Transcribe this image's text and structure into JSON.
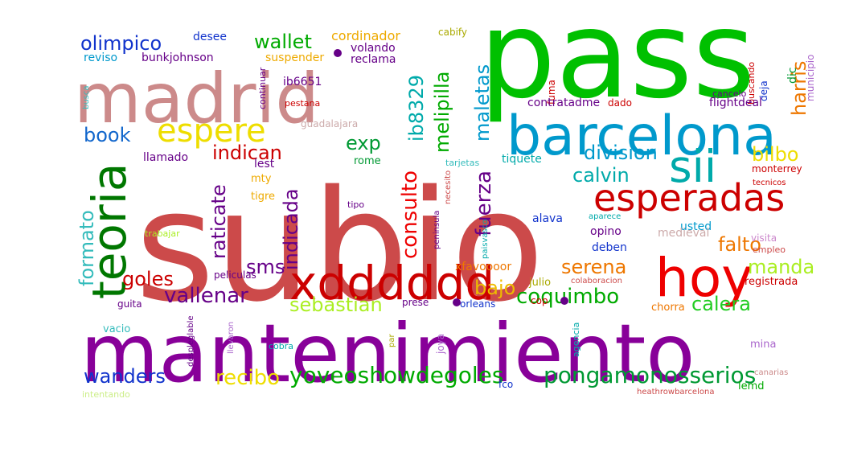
{
  "wordcloud": {
    "words": [
      {
        "text": "subio",
        "color": "#cc4a4a"
      },
      {
        "text": "pass",
        "color": "#00c000"
      },
      {
        "text": "mantenimiento",
        "color": "#880099"
      },
      {
        "text": "madrid",
        "color": "#cc8a8a"
      },
      {
        "text": "barcelona",
        "color": "#0099cc"
      },
      {
        "text": "hoy",
        "color": "#ee0000"
      },
      {
        "text": "xdddddd",
        "color": "#cc0000"
      },
      {
        "text": "teoria",
        "color": "#007700"
      },
      {
        "text": "espere",
        "color": "#eedd00"
      },
      {
        "text": "sii",
        "color": "#00aaaa"
      },
      {
        "text": "esperadas",
        "color": "#cc0000"
      },
      {
        "text": "yoveoshowdegoles",
        "color": "#00aa00"
      },
      {
        "text": "pongamonosserios",
        "color": "#009933"
      },
      {
        "text": "wanders",
        "color": "#1133cc"
      },
      {
        "text": "recibo",
        "color": "#eedd00"
      },
      {
        "text": "sebastian",
        "color": "#aaee22"
      },
      {
        "text": "vallenar",
        "color": "#660088"
      },
      {
        "text": "coquimbo",
        "color": "#00aa00"
      },
      {
        "text": "calera",
        "color": "#22cc22"
      },
      {
        "text": "goles",
        "color": "#cc0000"
      },
      {
        "text": "sms",
        "color": "#660088"
      },
      {
        "text": "formato",
        "color": "#33bbbb"
      },
      {
        "text": "raticate",
        "color": "#660088"
      },
      {
        "text": "indicada",
        "color": "#660088"
      },
      {
        "text": "consulto",
        "color": "#ee0000"
      },
      {
        "text": "fuerza",
        "color": "#660088"
      },
      {
        "text": "bajo",
        "color": "#eebb00"
      },
      {
        "text": "serena",
        "color": "#ee7700"
      },
      {
        "text": "manda",
        "color": "#aaee22"
      },
      {
        "text": "falto",
        "color": "#ee7700"
      },
      {
        "text": "calvin",
        "color": "#00aaaa"
      },
      {
        "text": "division",
        "color": "#0099cc"
      },
      {
        "text": "bilbo",
        "color": "#eedd00"
      },
      {
        "text": "indican",
        "color": "#cc0000"
      },
      {
        "text": "exp",
        "color": "#009933"
      },
      {
        "text": "book",
        "color": "#1166cc"
      },
      {
        "text": "olimpico",
        "color": "#1133cc"
      },
      {
        "text": "wallet",
        "color": "#00aa00"
      },
      {
        "text": "maletas",
        "color": "#0099cc"
      },
      {
        "text": "melipilla",
        "color": "#00aa00"
      },
      {
        "text": "ib8329",
        "color": "#00aaaa"
      },
      {
        "text": "harris",
        "color": "#ee7700"
      },
      {
        "text": "cordinador",
        "color": "#eeaa00"
      },
      {
        "text": "desee",
        "color": "#1133cc"
      },
      {
        "text": "reviso",
        "color": "#0099cc"
      },
      {
        "text": "bunkjohnson",
        "color": "#660088"
      },
      {
        "text": "suspender",
        "color": "#eeaa00"
      },
      {
        "text": "volando",
        "color": "#660088"
      },
      {
        "text": "reclama",
        "color": "#660088"
      },
      {
        "text": "cabify",
        "color": "#aaaa00"
      },
      {
        "text": "dic",
        "color": "#009933"
      },
      {
        "text": "municipio",
        "color": "#aa66cc"
      },
      {
        "text": "deja",
        "color": "#1133cc"
      },
      {
        "text": "cancelo",
        "color": "#660088"
      },
      {
        "text": "buscando",
        "color": "#cc0000"
      },
      {
        "text": "fuma",
        "color": "#cc0000"
      },
      {
        "text": "dado",
        "color": "#cc0000"
      },
      {
        "text": "contratadme",
        "color": "#660088"
      },
      {
        "text": "flightdeal",
        "color": "#660088"
      },
      {
        "text": "monterrey",
        "color": "#cc0000"
      },
      {
        "text": "tecnicos",
        "color": "#cc0000"
      },
      {
        "text": "ib6651",
        "color": "#660088"
      },
      {
        "text": "pestana",
        "color": "#cc0000"
      },
      {
        "text": "continuar",
        "color": "#660088"
      },
      {
        "text": "busca",
        "color": "#33bbbb"
      },
      {
        "text": "guadalajara",
        "color": "#ccaaaa"
      },
      {
        "text": "llamado",
        "color": "#660088"
      },
      {
        "text": "lest",
        "color": "#660088"
      },
      {
        "text": "mty",
        "color": "#eeaa00"
      },
      {
        "text": "tigre",
        "color": "#eeaa00"
      },
      {
        "text": "rome",
        "color": "#009933"
      },
      {
        "text": "tarjetas",
        "color": "#33bbbb"
      },
      {
        "text": "tiquete",
        "color": "#00aaaa"
      },
      {
        "text": "tipo",
        "color": "#660088"
      },
      {
        "text": "necesito",
        "color": "#cc4a4a"
      },
      {
        "text": "peninsula",
        "color": "#660088"
      },
      {
        "text": "paisvasco",
        "color": "#00aaaa"
      },
      {
        "text": "alava",
        "color": "#1133cc"
      },
      {
        "text": "aparece",
        "color": "#00aaaa"
      },
      {
        "text": "usted",
        "color": "#0099cc"
      },
      {
        "text": "opino",
        "color": "#660088"
      },
      {
        "text": "medieval",
        "color": "#ccaaaa"
      },
      {
        "text": "visita",
        "color": "#cc88cc"
      },
      {
        "text": "empleo",
        "color": "#cc4a4a"
      },
      {
        "text": "deben",
        "color": "#1133cc"
      },
      {
        "text": "trabajar",
        "color": "#aaee22"
      },
      {
        "text": "peliculas",
        "color": "#660088"
      },
      {
        "text": "xfavoooor",
        "color": "#ee7700"
      },
      {
        "text": "colaboracion",
        "color": "#cc4a4a"
      },
      {
        "text": "registrada",
        "color": "#cc0000"
      },
      {
        "text": "julio",
        "color": "#aaaa00"
      },
      {
        "text": "guita",
        "color": "#660088"
      },
      {
        "text": "prese",
        "color": "#660088"
      },
      {
        "text": "orleans",
        "color": "#1133cc"
      },
      {
        "text": "cop",
        "color": "#cc0000"
      },
      {
        "text": "chorra",
        "color": "#ee7700"
      },
      {
        "text": "despleglable",
        "color": "#660088"
      },
      {
        "text": "vacio",
        "color": "#33bbbb"
      },
      {
        "text": "llevaron",
        "color": "#aa66cc"
      },
      {
        "text": "cobra",
        "color": "#00aaaa"
      },
      {
        "text": "par",
        "color": "#aaaa00"
      },
      {
        "text": "joya",
        "color": "#aa66cc"
      },
      {
        "text": "agencia",
        "color": "#00aaaa"
      },
      {
        "text": "mina",
        "color": "#aa66cc"
      },
      {
        "text": "canarias",
        "color": "#cc8a8a"
      },
      {
        "text": "intentando",
        "color": "#ccee88"
      },
      {
        "text": "fco",
        "color": "#1133cc"
      },
      {
        "text": "heathrowbarcelona",
        "color": "#cc4a4a"
      },
      {
        "text": "lemd",
        "color": "#00aa00"
      }
    ]
  }
}
